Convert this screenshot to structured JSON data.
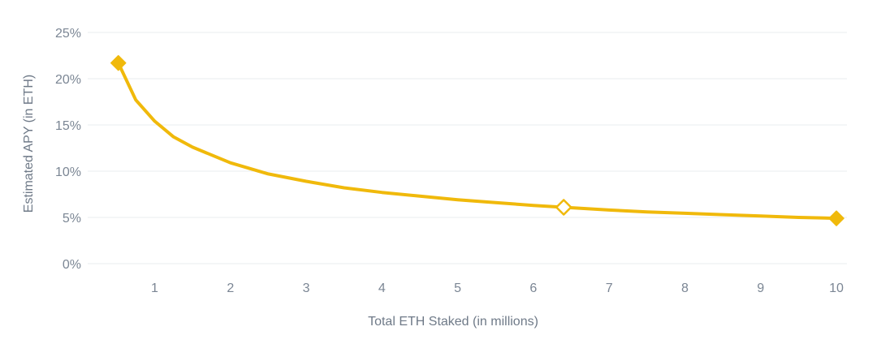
{
  "chart_data": {
    "type": "line",
    "title": "",
    "xlabel": "Total ETH Staked (in millions)",
    "ylabel": "Estimated APY (in ETH)",
    "xlim": [
      0.4,
      10.1
    ],
    "ylim": [
      0,
      25
    ],
    "x_ticks": [
      1,
      2,
      3,
      4,
      5,
      6,
      7,
      8,
      9,
      10
    ],
    "x_tick_labels": [
      "1",
      "2",
      "3",
      "4",
      "5",
      "6",
      "7",
      "8",
      "9",
      "10"
    ],
    "y_ticks": [
      0,
      5,
      10,
      15,
      20,
      25
    ],
    "y_tick_labels": [
      "0%",
      "5%",
      "10%",
      "15%",
      "20%",
      "25%"
    ],
    "grid": true,
    "legend": "none",
    "color": "#f0b90b",
    "series": [
      {
        "x": [
          0.52,
          0.75,
          1.0,
          1.25,
          1.5,
          2.0,
          2.5,
          3.0,
          3.5,
          4.0,
          4.5,
          5.0,
          5.5,
          6.0,
          6.4,
          7.0,
          7.5,
          8.0,
          8.5,
          9.0,
          9.5,
          10.0
        ],
        "y": [
          21.7,
          17.7,
          15.4,
          13.7,
          12.6,
          10.9,
          9.7,
          8.9,
          8.2,
          7.7,
          7.3,
          6.9,
          6.6,
          6.3,
          6.1,
          5.8,
          5.6,
          5.45,
          5.3,
          5.15,
          5.0,
          4.9
        ]
      }
    ],
    "markers": [
      {
        "x": 0.52,
        "y": 21.7,
        "style": "filled"
      },
      {
        "x": 6.4,
        "y": 6.1,
        "style": "hollow"
      },
      {
        "x": 10.0,
        "y": 4.9,
        "style": "filled"
      }
    ]
  }
}
